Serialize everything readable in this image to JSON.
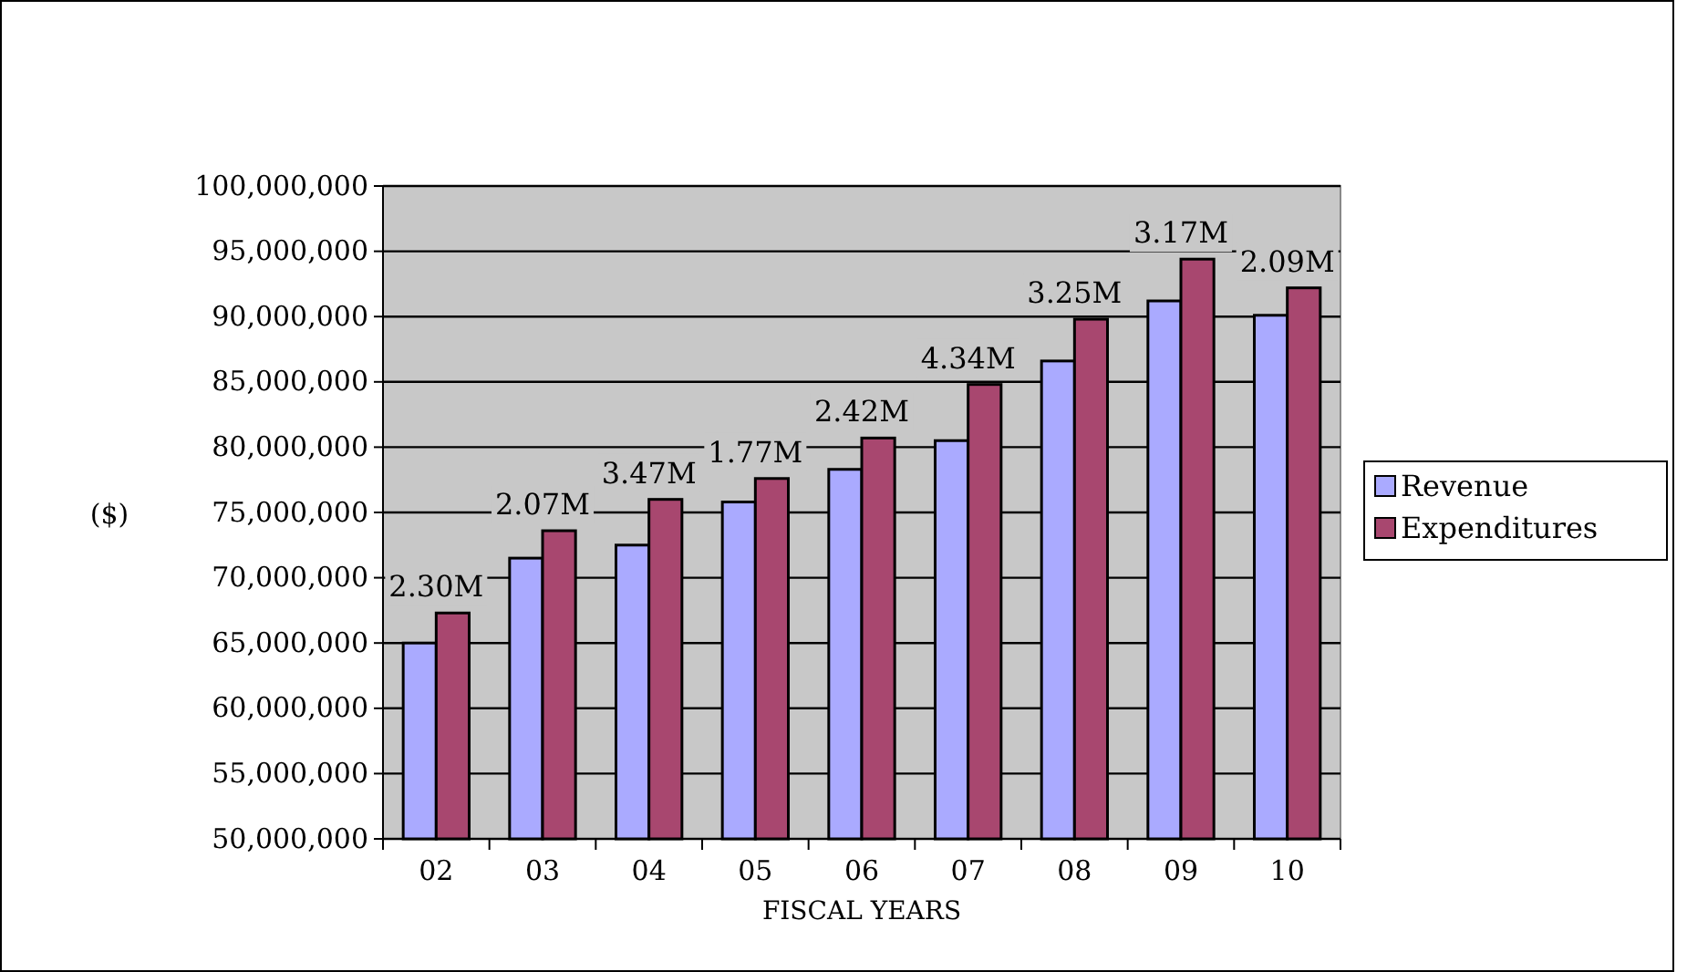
{
  "chart_data": {
    "type": "bar",
    "xlabel": "FISCAL YEARS",
    "ylabel": "($)",
    "categories": [
      "02",
      "03",
      "04",
      "05",
      "06",
      "07",
      "08",
      "09",
      "10"
    ],
    "series": [
      {
        "name": "Revenue",
        "color": "#aaaaff",
        "values": [
          65000000,
          71500000,
          72500000,
          75800000,
          78300000,
          80500000,
          86600000,
          91200000,
          90100000
        ]
      },
      {
        "name": "Expenditures",
        "color": "#a8476f",
        "values": [
          67300000,
          73600000,
          76000000,
          77600000,
          80700000,
          84800000,
          89800000,
          94400000,
          92200000
        ]
      }
    ],
    "ylim": [
      50000000,
      100000000
    ],
    "yticks": [
      {
        "value": 50000000,
        "label": "50,000,000"
      },
      {
        "value": 55000000,
        "label": "55,000,000"
      },
      {
        "value": 60000000,
        "label": "60,000,000"
      },
      {
        "value": 65000000,
        "label": "65,000,000"
      },
      {
        "value": 70000000,
        "label": "70,000,000"
      },
      {
        "value": 75000000,
        "label": "75,000,000"
      },
      {
        "value": 80000000,
        "label": "80,000,000"
      },
      {
        "value": 85000000,
        "label": "85,000,000"
      },
      {
        "value": 90000000,
        "label": "90,000,000"
      },
      {
        "value": 95000000,
        "label": "95,000,000"
      },
      {
        "value": 100000000,
        "label": "100,000,000"
      }
    ],
    "grid": "y",
    "legend": "right",
    "annotations": [
      "2.30M",
      "2.07M",
      "3.47M",
      "1.77M",
      "2.42M",
      "4.34M",
      "3.25M",
      "3.17M",
      "2.09M"
    ]
  }
}
